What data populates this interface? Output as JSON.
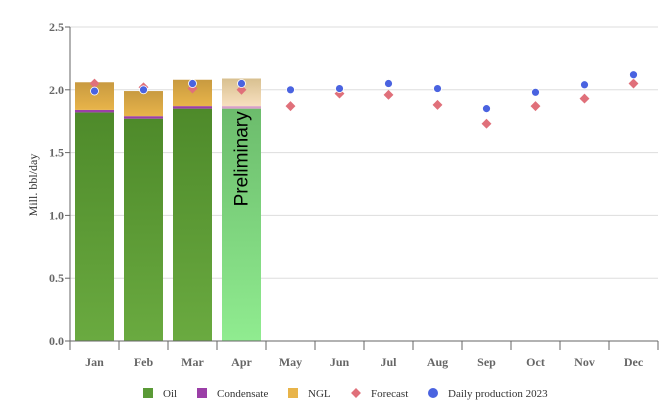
{
  "chart_data": {
    "type": "bar",
    "ylabel": "Mill. bbl/day",
    "ylim": [
      0,
      2.5
    ],
    "yticks": [
      "0.0",
      "0.5",
      "1.0",
      "1.5",
      "2.0",
      "2.5"
    ],
    "ytick_values": [
      0,
      0.5,
      1,
      1.5,
      2,
      2.5
    ],
    "categories": [
      "Jan",
      "Feb",
      "Mar",
      "Apr",
      "May",
      "Jun",
      "Jul",
      "Aug",
      "Sep",
      "Oct",
      "Nov",
      "Dec"
    ],
    "annotation": "Preliminary",
    "preliminary_index": 3,
    "stacked_series": [
      {
        "name": "Oil",
        "color": "#5a9a36",
        "values": [
          1.82,
          1.77,
          1.85,
          1.85,
          null,
          null,
          null,
          null,
          null,
          null,
          null,
          null
        ]
      },
      {
        "name": "Condensate",
        "color": "#9b3fa7",
        "values": [
          0.02,
          0.02,
          0.02,
          0.02,
          null,
          null,
          null,
          null,
          null,
          null,
          null,
          null
        ]
      },
      {
        "name": "NGL",
        "color": "#e2b04a",
        "values": [
          0.22,
          0.2,
          0.21,
          0.22,
          null,
          null,
          null,
          null,
          null,
          null,
          null,
          null
        ]
      }
    ],
    "point_series": [
      {
        "name": "Forecast",
        "color": "#e0707a",
        "marker": "diamond",
        "values": [
          2.05,
          2.02,
          2.01,
          2.0,
          1.87,
          1.97,
          1.96,
          1.88,
          1.73,
          1.87,
          1.93,
          2.05
        ]
      },
      {
        "name": "Daily production 2023",
        "color": "#4a63e0",
        "marker": "circle",
        "values": [
          1.99,
          2.0,
          2.05,
          2.05,
          2.0,
          2.01,
          2.05,
          2.01,
          1.85,
          1.98,
          2.04,
          2.12
        ]
      }
    ]
  }
}
